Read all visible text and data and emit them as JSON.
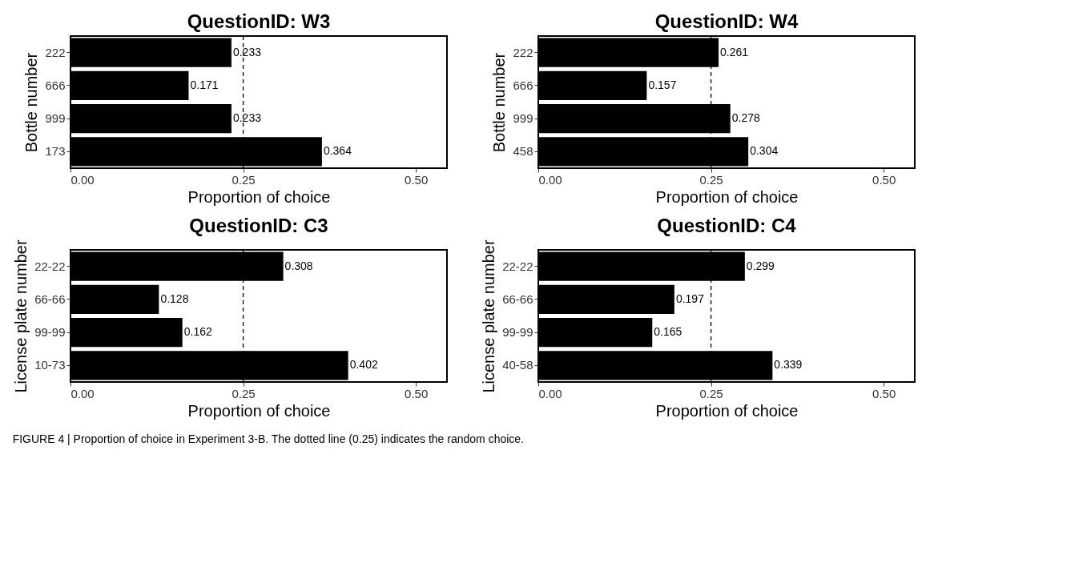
{
  "chart_data": [
    {
      "type": "bar",
      "orientation": "horizontal",
      "title": "QuestionID: W3",
      "xlabel": "Proportion of choice",
      "ylabel": "Bottle number",
      "categories": [
        "222",
        "666",
        "999",
        "173"
      ],
      "values": [
        0.233,
        0.171,
        0.233,
        0.364
      ],
      "color": "#000000",
      "xlim": [
        0,
        0.545
      ],
      "xticks": [
        {
          "value": 0,
          "label": "0.00"
        },
        {
          "value": 0.25,
          "label": "0.25"
        },
        {
          "value": 0.5,
          "label": "0.50"
        }
      ],
      "ref_lines": [
        {
          "axis": "x",
          "value": 0.25,
          "line_style": "dashed"
        }
      ],
      "data_labels": true,
      "grid": false,
      "annotations": [
        "FIGURE 4 | Proportion of choice in Experiment 3-B. The dotted line (0.25) indicates the random choice."
      ]
    },
    {
      "type": "bar",
      "orientation": "horizontal",
      "title": "QuestionID: W4",
      "xlabel": "Proportion of choice",
      "ylabel": "Bottle number",
      "categories": [
        "222",
        "666",
        "999",
        "458"
      ],
      "values": [
        0.261,
        0.157,
        0.278,
        0.304
      ],
      "color": "#000000",
      "xlim": [
        0,
        0.545
      ],
      "xticks": [
        {
          "value": 0,
          "label": "0.00"
        },
        {
          "value": 0.25,
          "label": "0.25"
        },
        {
          "value": 0.5,
          "label": "0.50"
        }
      ],
      "ref_lines": [
        {
          "axis": "x",
          "value": 0.25,
          "line_style": "dashed"
        }
      ],
      "data_labels": true,
      "grid": false
    },
    {
      "type": "bar",
      "orientation": "horizontal",
      "title": "QuestionID: C3",
      "xlabel": "Proportion of choice",
      "ylabel": "License plate number",
      "categories": [
        "22-22",
        "66-66",
        "99-99",
        "10-73"
      ],
      "values": [
        0.308,
        0.128,
        0.162,
        0.402
      ],
      "color": "#000000",
      "xlim": [
        0,
        0.545
      ],
      "xticks": [
        {
          "value": 0,
          "label": "0.00"
        },
        {
          "value": 0.25,
          "label": "0.25"
        },
        {
          "value": 0.5,
          "label": "0.50"
        }
      ],
      "ref_lines": [
        {
          "axis": "x",
          "value": 0.25,
          "line_style": "dashed"
        }
      ],
      "data_labels": true,
      "grid": false
    },
    {
      "type": "bar",
      "orientation": "horizontal",
      "title": "QuestionID: C4",
      "xlabel": "Proportion of choice",
      "ylabel": "License plate number",
      "categories": [
        "22-22",
        "66-66",
        "99-99",
        "40-58"
      ],
      "values": [
        0.299,
        0.197,
        0.165,
        0.339
      ],
      "color": "#000000",
      "xlim": [
        0,
        0.545
      ],
      "xticks": [
        {
          "value": 0,
          "label": "0.00"
        },
        {
          "value": 0.25,
          "label": "0.25"
        },
        {
          "value": 0.5,
          "label": "0.50"
        }
      ],
      "ref_lines": [
        {
          "axis": "x",
          "value": 0.25,
          "line_style": "dashed"
        }
      ],
      "data_labels": true,
      "grid": false
    }
  ]
}
